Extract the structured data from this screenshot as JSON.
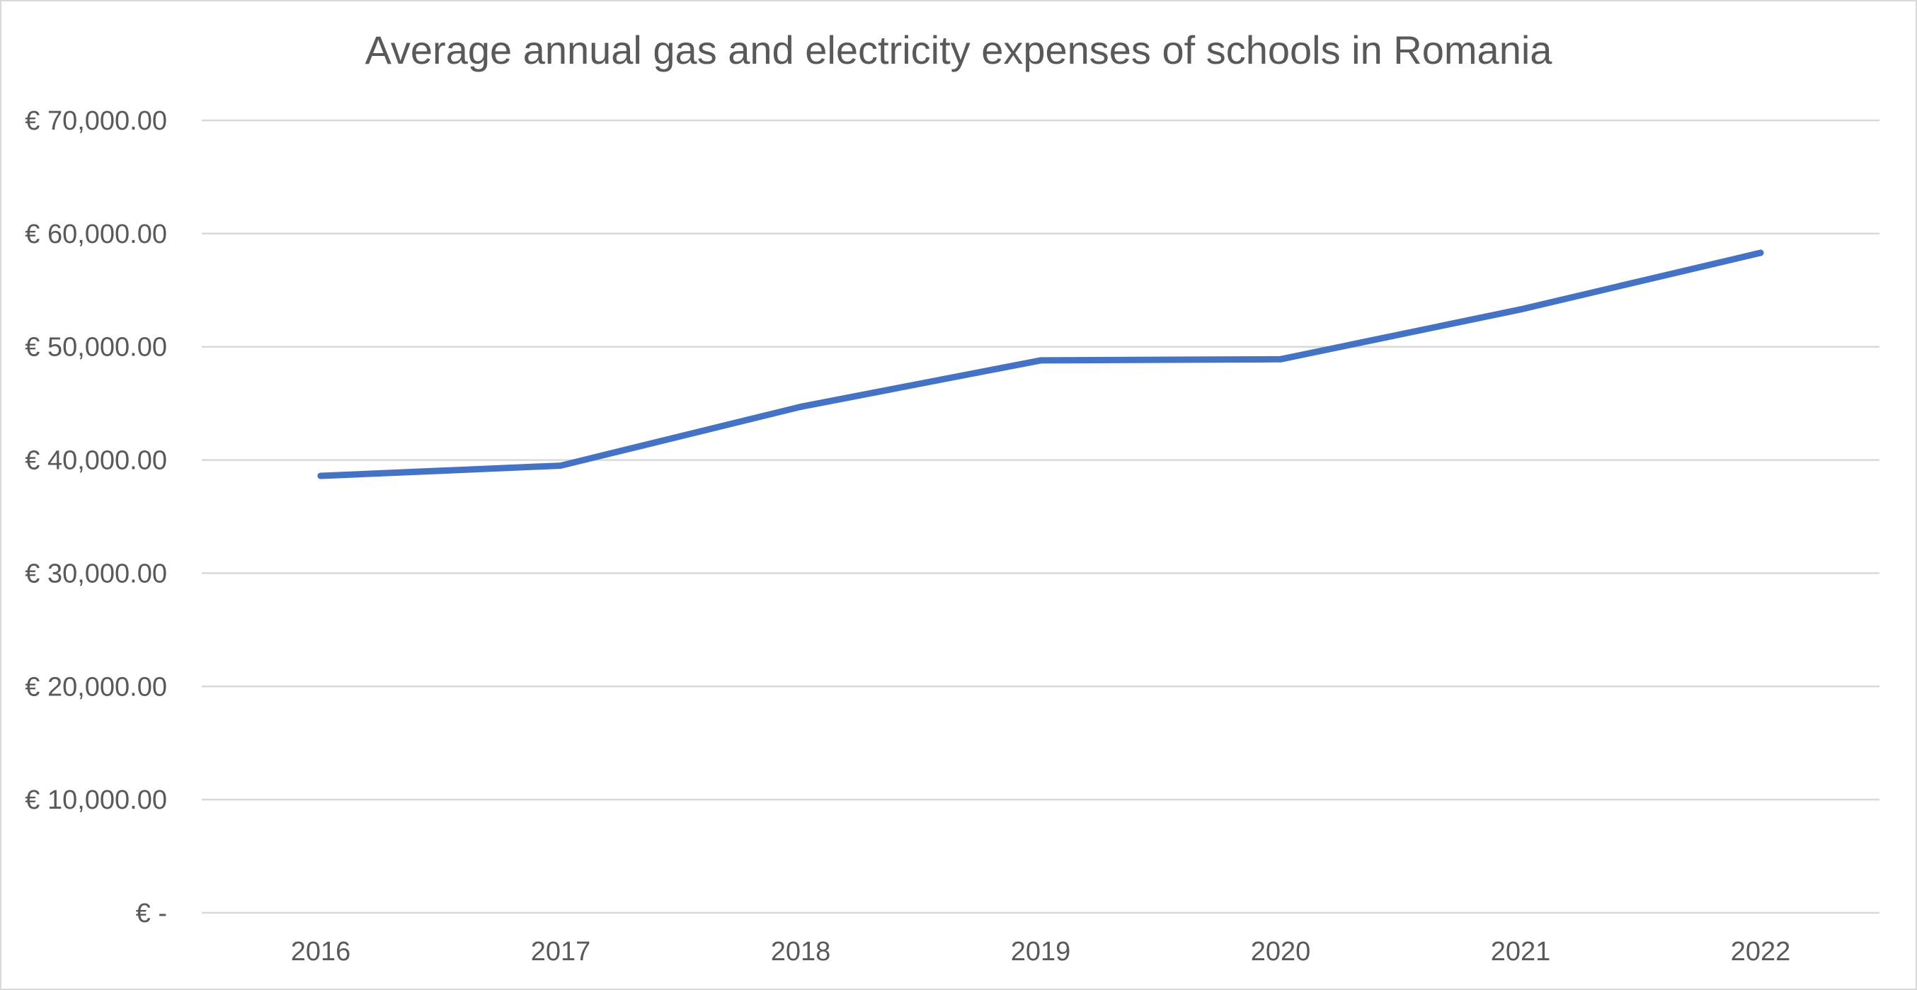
{
  "chart_data": {
    "type": "line",
    "title": "Average annual gas and electricity expenses of schools in Romania",
    "xlabel": "",
    "ylabel": "",
    "categories": [
      "2016",
      "2017",
      "2018",
      "2019",
      "2020",
      "2021",
      "2022"
    ],
    "series": [
      {
        "values": [
          38600,
          39500,
          44700,
          48800,
          48900,
          53300,
          58300
        ],
        "color": "#4472c4"
      }
    ],
    "ylim": [
      0,
      70000
    ],
    "yticks": [
      0,
      10000,
      20000,
      30000,
      40000,
      50000,
      60000,
      70000
    ],
    "ytick_labels": [
      "€ -",
      "€ 10,000.00",
      "€ 20,000.00",
      "€ 30,000.00",
      "€ 40,000.00",
      "€ 50,000.00",
      "€ 60,000.00",
      "€ 70,000.00"
    ],
    "grid": true,
    "legend": "none",
    "colors": {
      "gridline": "#d9d9d9",
      "text": "#595959",
      "line": "#4472c4"
    }
  }
}
